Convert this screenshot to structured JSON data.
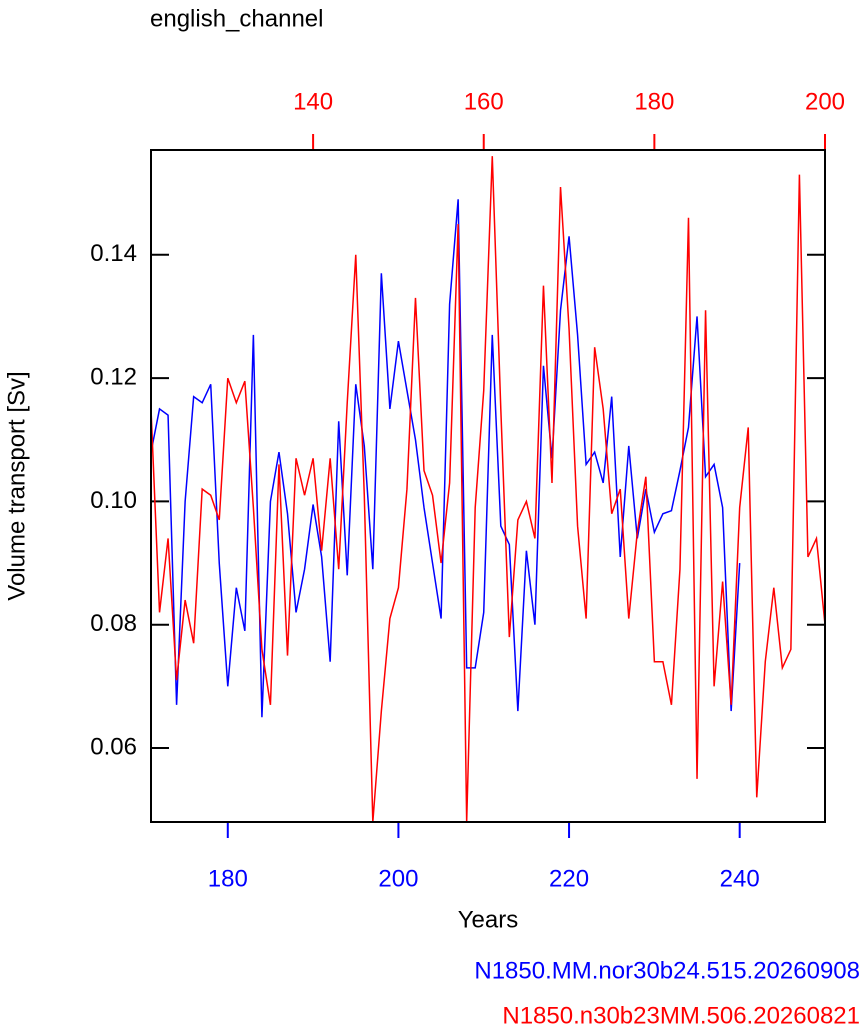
{
  "chart_data": {
    "type": "line",
    "title": "english_channel",
    "xlabel": "Years",
    "ylabel": "Volume transport [Sv]",
    "xlim": [
      171,
      250
    ],
    "xticks": [
      180,
      200,
      220,
      240
    ],
    "x2lim": [
      121,
      200
    ],
    "x2ticks": [
      140,
      160,
      180,
      200
    ],
    "ylim": [
      0.048,
      0.157
    ],
    "yticks": [
      0.06,
      0.08,
      {
        "value": 0.1,
        "label": "0.10"
      },
      0.12,
      0.14
    ],
    "xaxis_color": "#0000ff",
    "x2axis_color": "#ff0000",
    "series": [
      {
        "name": "N1850.MM.nor30b24.515.20260908",
        "color": "#0000ff",
        "axis": "x",
        "x": [
          171,
          172,
          173,
          174,
          175,
          176,
          177,
          178,
          179,
          180,
          181,
          182,
          183,
          184,
          185,
          186,
          187,
          188,
          189,
          190,
          191,
          192,
          193,
          194,
          195,
          196,
          197,
          198,
          199,
          200,
          201,
          202,
          203,
          204,
          205,
          206,
          207,
          208,
          209,
          210,
          211,
          212,
          213,
          214,
          215,
          216,
          217,
          218,
          219,
          220,
          221,
          222,
          223,
          224,
          225,
          226,
          227,
          228,
          229,
          230,
          231,
          232,
          233,
          234,
          235,
          236,
          237,
          238,
          239,
          240
        ],
        "values": [
          0.108,
          0.115,
          0.114,
          0.067,
          0.1,
          0.117,
          0.116,
          0.119,
          0.09,
          0.07,
          0.086,
          0.079,
          0.127,
          0.065,
          0.1,
          0.108,
          0.098,
          0.082,
          0.089,
          0.0995,
          0.091,
          0.074,
          0.113,
          0.088,
          0.119,
          0.109,
          0.089,
          0.137,
          0.115,
          0.126,
          0.118,
          0.11,
          0.099,
          0.09,
          0.081,
          0.132,
          0.149,
          0.073,
          0.073,
          0.082,
          0.127,
          0.096,
          0.093,
          0.066,
          0.092,
          0.08,
          0.122,
          0.107,
          0.131,
          0.143,
          0.127,
          0.106,
          0.108,
          0.103,
          0.117,
          0.091,
          0.109,
          0.094,
          0.102,
          0.095,
          0.098,
          0.0985,
          0.105,
          0.112,
          0.13,
          0.104,
          0.106,
          0.099,
          0.066,
          0.09
        ]
      },
      {
        "name": "N1850.n30b23MM.506.20260821",
        "color": "#ff0000",
        "axis": "x2",
        "x": [
          121,
          122,
          123,
          124,
          125,
          126,
          127,
          128,
          129,
          130,
          131,
          132,
          133,
          134,
          135,
          136,
          137,
          138,
          139,
          140,
          141,
          142,
          143,
          144,
          145,
          146,
          147,
          148,
          149,
          150,
          151,
          152,
          153,
          154,
          155,
          156,
          157,
          158,
          159,
          160,
          161,
          162,
          163,
          164,
          165,
          166,
          167,
          168,
          169,
          170,
          171,
          172,
          173,
          174,
          175,
          176,
          177,
          178,
          179,
          180,
          181,
          182,
          183,
          184,
          185,
          186,
          187,
          188,
          189,
          190,
          191,
          192,
          193,
          194,
          195,
          196,
          197,
          198,
          199,
          200
        ],
        "values": [
          0.115,
          0.082,
          0.094,
          0.071,
          0.084,
          0.077,
          0.102,
          0.101,
          0.097,
          0.12,
          0.116,
          0.1195,
          0.099,
          0.076,
          0.067,
          0.106,
          0.075,
          0.107,
          0.101,
          0.107,
          0.092,
          0.107,
          0.089,
          0.116,
          0.14,
          0.101,
          0.048,
          0.066,
          0.081,
          0.086,
          0.102,
          0.133,
          0.105,
          0.101,
          0.09,
          0.103,
          0.145,
          0.048,
          0.099,
          0.118,
          0.156,
          0.115,
          0.078,
          0.097,
          0.1,
          0.094,
          0.135,
          0.103,
          0.151,
          0.128,
          0.096,
          0.081,
          0.125,
          0.115,
          0.098,
          0.102,
          0.081,
          0.095,
          0.104,
          0.074,
          0.074,
          0.067,
          0.089,
          0.146,
          0.055,
          0.131,
          0.07,
          0.087,
          0.067,
          0.099,
          0.112,
          0.052,
          0.074,
          0.086,
          0.073,
          0.076,
          0.153,
          0.091,
          0.094,
          0.08
        ]
      }
    ]
  }
}
